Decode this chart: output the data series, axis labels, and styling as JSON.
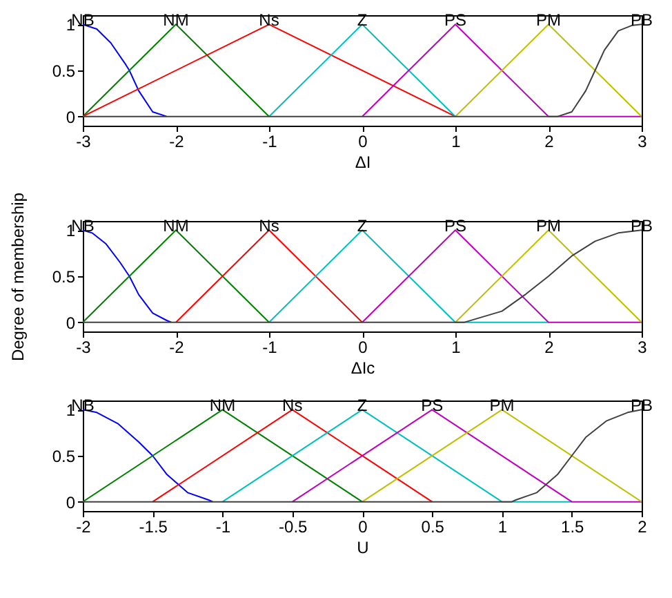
{
  "chart_data": [
    {
      "type": "line",
      "xlabel": "ΔI",
      "xlim": [
        -3,
        3
      ],
      "xticks": [
        -3,
        -2,
        -1,
        0,
        1,
        2,
        3
      ],
      "ylim": [
        -0.1,
        1.1
      ],
      "yticks": [
        0,
        0.5,
        1
      ],
      "grid": false,
      "legend": false,
      "marker": "none",
      "line_style": "solid",
      "series": [
        {
          "name": "NB",
          "color": "#0000ff",
          "x": [
            -3,
            -2.85,
            -2.7,
            -2.55,
            -2.5,
            -2.4,
            -2.25,
            -2.1
          ],
          "values": [
            1,
            0.95,
            0.8,
            0.58,
            0.5,
            0.28,
            0.05,
            0
          ]
        },
        {
          "name": "NM",
          "color": "#008000",
          "x": [
            -3,
            -2,
            -1
          ],
          "values": [
            0,
            1,
            0
          ]
        },
        {
          "name": "Ns",
          "color": "#ff0000",
          "x": [
            -3,
            -1,
            1
          ],
          "values": [
            0,
            1,
            0
          ]
        },
        {
          "name": "Z",
          "color": "#00bfbf",
          "x": [
            -1,
            0,
            1
          ],
          "values": [
            0,
            1,
            0
          ]
        },
        {
          "name": "PS",
          "color": "#bf00bf",
          "x": [
            0,
            1,
            2,
            3
          ],
          "values": [
            0,
            1,
            0,
            0
          ]
        },
        {
          "name": "PM",
          "color": "#bfbf00",
          "x": [
            1,
            2,
            3
          ],
          "values": [
            0,
            1,
            0
          ]
        },
        {
          "name": "PB",
          "color": "#404040",
          "x": [
            -3,
            2.1,
            2.25,
            2.4,
            2.5,
            2.6,
            2.75,
            2.9,
            3
          ],
          "values": [
            0,
            0,
            0.05,
            0.28,
            0.5,
            0.72,
            0.93,
            0.99,
            1
          ]
        }
      ]
    },
    {
      "type": "line",
      "xlabel": "ΔIc",
      "ylabel": "Degree of membership",
      "xlim": [
        -3,
        3
      ],
      "xticks": [
        -3,
        -2,
        -1,
        0,
        1,
        2,
        3
      ],
      "ylim": [
        -0.1,
        1.1
      ],
      "yticks": [
        0,
        0.5,
        1
      ],
      "grid": false,
      "legend": false,
      "marker": "none",
      "line_style": "solid",
      "series": [
        {
          "name": "NB",
          "color": "#0000ff",
          "x": [
            -3,
            -2.9,
            -2.75,
            -2.6,
            -2.5,
            -2.4,
            -2.25,
            -2.1,
            -2.05
          ],
          "values": [
            1,
            0.97,
            0.85,
            0.65,
            0.5,
            0.3,
            0.1,
            0.02,
            0
          ]
        },
        {
          "name": "NM",
          "color": "#008000",
          "x": [
            -3,
            -2,
            -1
          ],
          "values": [
            0,
            1,
            0
          ]
        },
        {
          "name": "Ns",
          "color": "#ff0000",
          "x": [
            -2,
            -1,
            0
          ],
          "values": [
            0,
            1,
            0
          ]
        },
        {
          "name": "Z",
          "color": "#00bfbf",
          "x": [
            -1,
            0,
            1,
            2
          ],
          "values": [
            0,
            1,
            0,
            0
          ]
        },
        {
          "name": "PS",
          "color": "#bf00bf",
          "x": [
            0,
            1,
            2,
            3
          ],
          "values": [
            0,
            1,
            0,
            0
          ]
        },
        {
          "name": "PM",
          "color": "#bfbf00",
          "x": [
            1,
            2,
            3
          ],
          "values": [
            0,
            1,
            0
          ]
        },
        {
          "name": "PB",
          "color": "#404040",
          "x": [
            -3,
            1.1,
            1.5,
            1.75,
            2,
            2.25,
            2.5,
            2.75,
            3
          ],
          "values": [
            0,
            0,
            0.12,
            0.3,
            0.5,
            0.72,
            0.88,
            0.97,
            1
          ]
        }
      ]
    },
    {
      "type": "line",
      "xlabel": "U",
      "xlim": [
        -2,
        2
      ],
      "xticks": [
        -2,
        -1.5,
        -1,
        -0.5,
        0,
        0.5,
        1,
        1.5,
        2
      ],
      "ylim": [
        -0.1,
        1.1
      ],
      "yticks": [
        0,
        0.5,
        1
      ],
      "grid": false,
      "legend": false,
      "marker": "none",
      "line_style": "solid",
      "series": [
        {
          "name": "NB",
          "color": "#0000ff",
          "x": [
            -2,
            -1.9,
            -1.75,
            -1.6,
            -1.5,
            -1.4,
            -1.25,
            -1.1,
            -1.07
          ],
          "values": [
            1,
            0.97,
            0.85,
            0.65,
            0.5,
            0.3,
            0.1,
            0.02,
            0
          ]
        },
        {
          "name": "NM",
          "color": "#008000",
          "x": [
            -2,
            -1,
            0
          ],
          "values": [
            0,
            1,
            0
          ]
        },
        {
          "name": "Ns",
          "color": "#ff0000",
          "x": [
            -1.5,
            -0.5,
            0.5
          ],
          "values": [
            0,
            1,
            0
          ]
        },
        {
          "name": "Z",
          "color": "#00bfbf",
          "x": [
            -1,
            0,
            1,
            1.5
          ],
          "values": [
            0,
            1,
            0,
            0
          ]
        },
        {
          "name": "PS",
          "color": "#bf00bf",
          "x": [
            -0.5,
            0.5,
            1.5,
            2
          ],
          "values": [
            0,
            1,
            0,
            0
          ]
        },
        {
          "name": "PM",
          "color": "#bfbf00",
          "x": [
            0,
            1,
            2
          ],
          "values": [
            0,
            1,
            0
          ]
        },
        {
          "name": "PB",
          "color": "#404040",
          "x": [
            -2,
            1.07,
            1.1,
            1.25,
            1.4,
            1.5,
            1.6,
            1.75,
            1.9,
            2
          ],
          "values": [
            0,
            0,
            0.02,
            0.1,
            0.3,
            0.5,
            0.7,
            0.88,
            0.97,
            1
          ]
        }
      ]
    }
  ]
}
